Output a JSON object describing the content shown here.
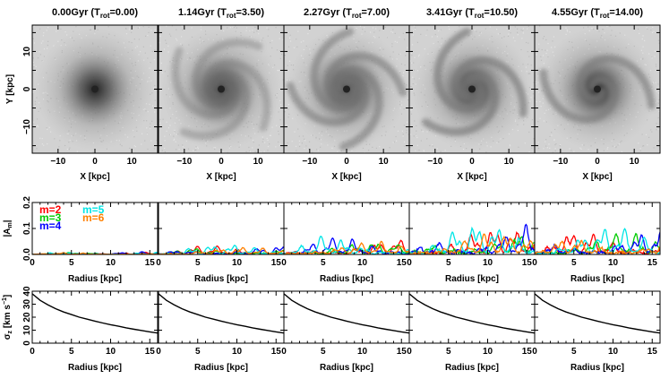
{
  "panel_titles": [
    {
      "time": "0.00Gyr",
      "trot": "0.00"
    },
    {
      "time": "1.14Gyr",
      "trot": "3.50"
    },
    {
      "time": "2.27Gyr",
      "trot": "7.00"
    },
    {
      "time": "3.41Gyr",
      "trot": "10.50"
    },
    {
      "time": "4.55Gyr",
      "trot": "14.00"
    }
  ],
  "title_prefix": "(T",
  "title_sub": "rot",
  "title_eq": "=",
  "title_suffix": ")",
  "chart_data": [
    {
      "type": "heatmap",
      "description_row": "images",
      "xlabel": "X [kpc]",
      "ylabel": "Y [kpc]",
      "xlim": [
        -17,
        17
      ],
      "ylim": [
        -17,
        17
      ],
      "xticks": [
        -10,
        0,
        10
      ],
      "yticks": [
        -10,
        0,
        10
      ],
      "colors": {
        "background": "#d2d2d2",
        "arms": "#7a7a7a",
        "core": "#222222"
      },
      "spiral_strength": [
        0.0,
        0.55,
        0.8,
        0.9,
        0.85
      ],
      "spiral_arms": [
        0,
        4,
        4,
        3,
        2
      ]
    },
    {
      "type": "line",
      "xlabel": "Radius [kpc]",
      "ylabel": "|A_m|",
      "xlim": [
        0,
        16
      ],
      "ylim": [
        0,
        0.2
      ],
      "xticks": [
        0,
        5,
        10,
        15
      ],
      "yticks": [
        0,
        0.1,
        0.2
      ],
      "ytick_labels": [
        "0.0",
        "0.1",
        "0.2"
      ],
      "legend": [
        {
          "label": "m=2",
          "color": "#ff0000"
        },
        {
          "label": "m=3",
          "color": "#00cc00"
        },
        {
          "label": "m=4",
          "color": "#0000ff"
        },
        {
          "label": "m=5",
          "color": "#00e5e5"
        },
        {
          "label": "m=6",
          "color": "#ff8000"
        }
      ],
      "legend_position": "top-left",
      "amplitude_scale": [
        0.01,
        0.035,
        0.06,
        0.11,
        0.095
      ]
    },
    {
      "type": "line",
      "xlabel": "Radius [kpc]",
      "ylabel": "σ_z [km s^-1]",
      "xlim": [
        0,
        16
      ],
      "ylim": [
        0,
        40
      ],
      "xticks": [
        0,
        5,
        10,
        15
      ],
      "yticks": [
        0,
        10,
        20,
        30,
        40
      ],
      "x": [
        0,
        1,
        2,
        3,
        4,
        5,
        6,
        7,
        8,
        9,
        10,
        11,
        12,
        13,
        14,
        15,
        16
      ],
      "values": [
        38,
        33,
        29.5,
        26.5,
        24,
        22,
        20,
        18.5,
        17,
        15.5,
        14.2,
        13,
        11.8,
        10.7,
        9.7,
        8.7,
        7.8
      ]
    }
  ]
}
